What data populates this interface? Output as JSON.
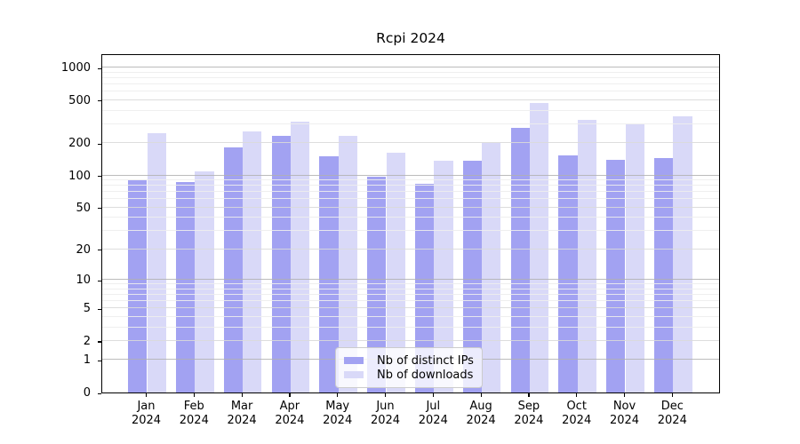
{
  "title": "Rcpi 2024",
  "chart_data": {
    "type": "bar",
    "title": "Rcpi 2024",
    "categories": [
      "Jan",
      "Feb",
      "Mar",
      "Apr",
      "May",
      "Jun",
      "Jul",
      "Aug",
      "Sep",
      "Oct",
      "Nov",
      "Dec"
    ],
    "category_year": "2024",
    "series": [
      {
        "name": "Nb of distinct IPs",
        "color": "#a2a2f2",
        "values": [
          90,
          86,
          183,
          232,
          151,
          98,
          84,
          136,
          277,
          155,
          140,
          144
        ]
      },
      {
        "name": "Nb of downloads",
        "color": "#d9d9f8",
        "values": [
          248,
          110,
          255,
          314,
          235,
          164,
          138,
          201,
          473,
          329,
          300,
          357
        ]
      }
    ],
    "yscale": "log1p",
    "ylim": [
      0,
      1350
    ],
    "yticks": [
      0,
      1,
      2,
      5,
      10,
      20,
      50,
      100,
      200,
      500,
      1000
    ],
    "grid": "on",
    "legend_position": "bottom-center",
    "xlabel": "",
    "ylabel": ""
  },
  "legend": {
    "items": [
      {
        "label": "Nb of distinct IPs",
        "color": "#a2a2f2"
      },
      {
        "label": "Nb of downloads",
        "color": "#d9d9f8"
      }
    ]
  }
}
